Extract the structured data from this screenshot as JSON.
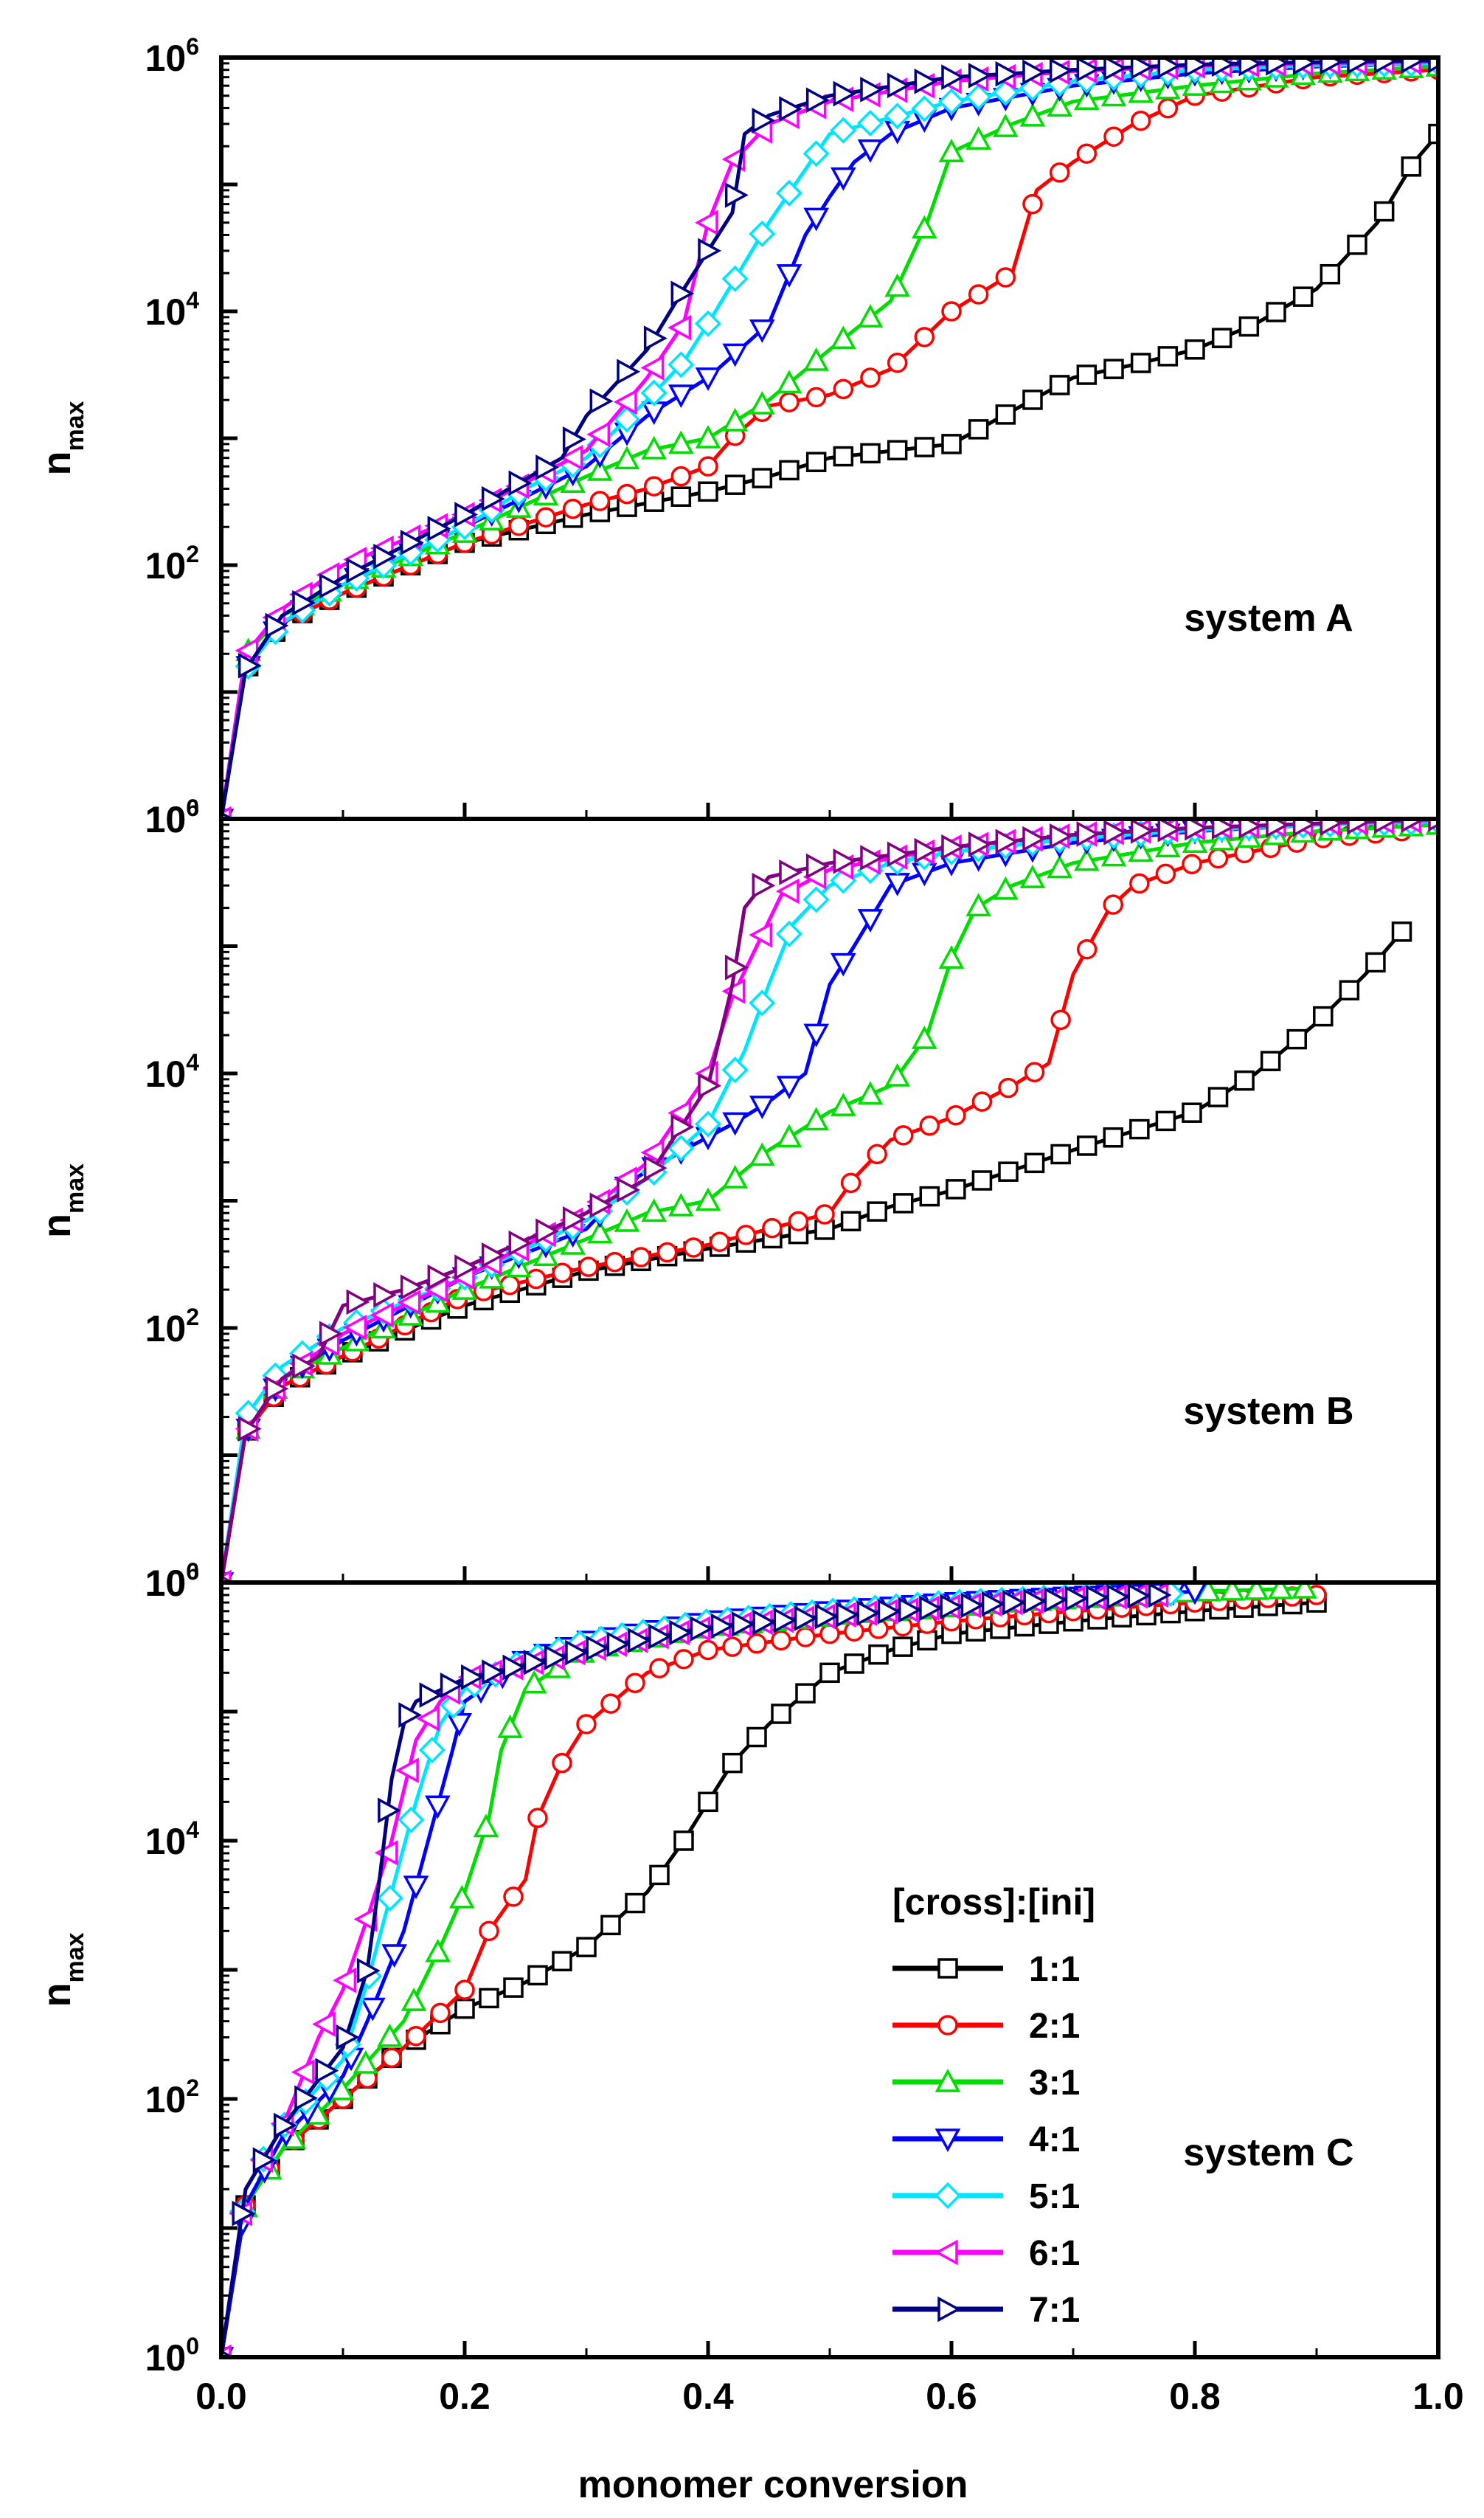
{
  "figure": {
    "xlabel": "monomer conversion",
    "x_ticks": [
      "0.0",
      "0.2",
      "0.4",
      "0.6",
      "0.8",
      "1.0"
    ],
    "y_tick_base": "10",
    "y_tick_exps": [
      "0",
      "2",
      "4",
      "6"
    ],
    "ylabel_main": "n",
    "ylabel_sub": "max",
    "legend_title": "[cross]:[ini]",
    "legend_entries": [
      "1:1",
      "2:1",
      "3:1",
      "4:1",
      "5:1",
      "6:1",
      "7:1"
    ],
    "colors": {
      "1:1": "#000000",
      "2:1": "#ff0000",
      "3:1": "#00dd00",
      "4:1": "#0000ff",
      "5:1": "#00e5ff",
      "6:1": "#ff00ff",
      "7:1": "#000080",
      "B-7:1": "#800080"
    },
    "markers": {
      "1:1": "square",
      "2:1": "circle",
      "3:1": "triangle-up",
      "4:1": "triangle-down",
      "5:1": "diamond",
      "6:1": "triangle-left",
      "7:1": "triangle-right"
    }
  },
  "chart_data": [
    {
      "type": "line",
      "title": "system A",
      "xlabel": "monomer conversion",
      "ylabel": "n_max",
      "xlim": [
        0,
        1.0
      ],
      "ylim": [
        1,
        1000000
      ],
      "yscale": "log",
      "series": [
        {
          "name": "1:1",
          "x": [
            0,
            0.02,
            0.05,
            0.1,
            0.2,
            0.3,
            0.4,
            0.45,
            0.5,
            0.6,
            0.7,
            0.75,
            0.8,
            0.85,
            0.9,
            0.95,
            0.98,
            1.0
          ],
          "y": [
            1,
            15,
            35,
            60,
            150,
            250,
            380,
            500,
            700,
            900,
            3000,
            3800,
            5000,
            8000,
            15000,
            50000,
            150000,
            250000
          ]
        },
        {
          "name": "2:1",
          "x": [
            0,
            0.02,
            0.05,
            0.1,
            0.2,
            0.3,
            0.35,
            0.4,
            0.42,
            0.45,
            0.5,
            0.55,
            0.6,
            0.65,
            0.67,
            0.7,
            0.75,
            0.8,
            0.9,
            1.0
          ],
          "y": [
            1,
            15,
            35,
            60,
            150,
            300,
            400,
            600,
            1000,
            1800,
            2200,
            3500,
            10000,
            20000,
            90000,
            150000,
            300000,
            500000,
            700000,
            800000
          ]
        },
        {
          "name": "3:1",
          "x": [
            0,
            0.02,
            0.05,
            0.1,
            0.2,
            0.3,
            0.35,
            0.4,
            0.45,
            0.5,
            0.55,
            0.58,
            0.6,
            0.65,
            0.7,
            0.8,
            0.9,
            1.0
          ],
          "y": [
            1,
            20,
            40,
            70,
            180,
            500,
            800,
            1000,
            2000,
            5000,
            12000,
            50000,
            180000,
            300000,
            450000,
            600000,
            750000,
            850000
          ]
        },
        {
          "name": "4:1",
          "x": [
            0,
            0.02,
            0.05,
            0.1,
            0.2,
            0.3,
            0.35,
            0.4,
            0.45,
            0.48,
            0.5,
            0.52,
            0.55,
            0.6,
            0.7,
            0.8,
            0.9,
            1.0
          ],
          "y": [
            1,
            15,
            35,
            70,
            200,
            600,
            1500,
            3000,
            8000,
            40000,
            80000,
            150000,
            250000,
            400000,
            600000,
            750000,
            850000,
            900000
          ]
        },
        {
          "name": "5:1",
          "x": [
            0,
            0.02,
            0.05,
            0.1,
            0.2,
            0.25,
            0.3,
            0.35,
            0.38,
            0.4,
            0.45,
            0.5,
            0.6,
            0.7,
            0.8,
            0.9,
            1.0
          ],
          "y": [
            1,
            15,
            35,
            70,
            200,
            400,
            700,
            2000,
            4000,
            8000,
            50000,
            250000,
            450000,
            650000,
            800000,
            870000,
            900000
          ]
        },
        {
          "name": "6:1",
          "x": [
            0,
            0.02,
            0.05,
            0.1,
            0.2,
            0.3,
            0.35,
            0.38,
            0.4,
            0.42,
            0.45,
            0.5,
            0.6,
            0.7,
            0.8,
            0.9,
            1.0
          ],
          "y": [
            1,
            20,
            45,
            100,
            250,
            800,
            3000,
            8000,
            50000,
            150000,
            300000,
            450000,
            650000,
            780000,
            860000,
            900000,
            930000
          ]
        },
        {
          "name": "7:1",
          "x": [
            0,
            0.02,
            0.05,
            0.1,
            0.2,
            0.28,
            0.3,
            0.35,
            0.38,
            0.42,
            0.43,
            0.45,
            0.5,
            0.6,
            0.7,
            0.8,
            0.9,
            1.0
          ],
          "y": [
            1,
            15,
            40,
            80,
            250,
            700,
            1500,
            5000,
            15000,
            60000,
            250000,
            350000,
            500000,
            700000,
            800000,
            880000,
            920000,
            950000
          ]
        }
      ]
    },
    {
      "type": "line",
      "title": "system B",
      "xlabel": "monomer conversion",
      "ylabel": "n_max",
      "xlim": [
        0,
        1.0
      ],
      "ylim": [
        1,
        1000000
      ],
      "yscale": "log",
      "series": [
        {
          "name": "1:1",
          "x": [
            0,
            0.02,
            0.05,
            0.1,
            0.2,
            0.3,
            0.4,
            0.5,
            0.55,
            0.6,
            0.7,
            0.8,
            0.85,
            0.9,
            0.94,
            0.97
          ],
          "y": [
            1,
            15,
            35,
            60,
            150,
            280,
            420,
            600,
            900,
            1200,
            2500,
            5000,
            10000,
            25000,
            60000,
            130000
          ]
        },
        {
          "name": "2:1",
          "x": [
            0,
            0.02,
            0.05,
            0.1,
            0.2,
            0.3,
            0.4,
            0.45,
            0.5,
            0.52,
            0.55,
            0.6,
            0.65,
            0.68,
            0.7,
            0.73,
            0.75,
            0.8,
            0.9,
            0.97
          ],
          "y": [
            1,
            15,
            35,
            60,
            180,
            300,
            450,
            600,
            800,
            1500,
            3000,
            4500,
            8000,
            12000,
            60000,
            200000,
            300000,
            450000,
            700000,
            800000
          ]
        },
        {
          "name": "3:1",
          "x": [
            0,
            0.02,
            0.05,
            0.1,
            0.2,
            0.3,
            0.35,
            0.4,
            0.45,
            0.5,
            0.55,
            0.58,
            0.6,
            0.62,
            0.65,
            0.7,
            0.8,
            0.9,
            1.0
          ],
          "y": [
            1,
            15,
            40,
            70,
            200,
            500,
            800,
            1000,
            2500,
            5000,
            8000,
            20000,
            80000,
            200000,
            300000,
            450000,
            650000,
            800000,
            900000
          ]
        },
        {
          "name": "4:1",
          "x": [
            0,
            0.02,
            0.05,
            0.1,
            0.2,
            0.3,
            0.34,
            0.38,
            0.42,
            0.45,
            0.48,
            0.5,
            0.52,
            0.55,
            0.6,
            0.7,
            0.8,
            0.9,
            1.0
          ],
          "y": [
            1,
            15,
            40,
            80,
            250,
            600,
            1500,
            2500,
            4000,
            6000,
            10000,
            50000,
            100000,
            300000,
            450000,
            650000,
            800000,
            900000,
            950000
          ]
        },
        {
          "name": "5:1",
          "x": [
            0,
            0.02,
            0.05,
            0.1,
            0.2,
            0.3,
            0.35,
            0.4,
            0.43,
            0.45,
            0.47,
            0.5,
            0.55,
            0.6,
            0.7,
            0.8,
            0.9,
            1.0
          ],
          "y": [
            1,
            20,
            50,
            100,
            250,
            700,
            1500,
            4000,
            15000,
            50000,
            150000,
            300000,
            450000,
            550000,
            700000,
            820000,
            900000,
            950000
          ]
        },
        {
          "name": "6:1",
          "x": [
            0,
            0.02,
            0.05,
            0.1,
            0.2,
            0.3,
            0.35,
            0.4,
            0.42,
            0.44,
            0.46,
            0.5,
            0.6,
            0.7,
            0.8,
            0.9,
            1.0
          ],
          "y": [
            1,
            15,
            40,
            90,
            250,
            800,
            2000,
            10000,
            40000,
            100000,
            250000,
            400000,
            600000,
            750000,
            850000,
            920000,
            980000
          ]
        },
        {
          "name": "7:1",
          "x": [
            0,
            0.02,
            0.05,
            0.08,
            0.1,
            0.15,
            0.2,
            0.3,
            0.35,
            0.4,
            0.42,
            0.43,
            0.45,
            0.5,
            0.6,
            0.7,
            0.8,
            0.9,
            1.0
          ],
          "y": [
            1,
            15,
            40,
            60,
            150,
            200,
            300,
            800,
            1500,
            8000,
            50000,
            200000,
            350000,
            450000,
            600000,
            750000,
            850000,
            920000,
            1000000
          ]
        }
      ]
    },
    {
      "type": "line",
      "title": "system C",
      "xlabel": "monomer conversion",
      "ylabel": "n_max",
      "xlim": [
        0,
        1.0
      ],
      "ylim": [
        1,
        1000000
      ],
      "yscale": "log",
      "series": [
        {
          "name": "1:1",
          "x": [
            0,
            0.02,
            0.05,
            0.1,
            0.15,
            0.2,
            0.25,
            0.3,
            0.35,
            0.38,
            0.4,
            0.42,
            0.45,
            0.5,
            0.55,
            0.6,
            0.7,
            0.8,
            0.9
          ],
          "y": [
            1,
            15,
            40,
            100,
            250,
            500,
            800,
            1500,
            4000,
            10000,
            20000,
            40000,
            80000,
            200000,
            300000,
            400000,
            500000,
            600000,
            700000
          ]
        },
        {
          "name": "2:1",
          "x": [
            0,
            0.02,
            0.05,
            0.1,
            0.15,
            0.2,
            0.22,
            0.25,
            0.26,
            0.28,
            0.3,
            0.35,
            0.4,
            0.5,
            0.6,
            0.7,
            0.8,
            0.9
          ],
          "y": [
            1,
            15,
            40,
            100,
            250,
            700,
            2000,
            5000,
            15000,
            40000,
            80000,
            200000,
            300000,
            400000,
            500000,
            600000,
            700000,
            800000
          ]
        },
        {
          "name": "3:1",
          "x": [
            0,
            0.02,
            0.05,
            0.1,
            0.15,
            0.18,
            0.2,
            0.22,
            0.23,
            0.25,
            0.3,
            0.4,
            0.5,
            0.6,
            0.7,
            0.8,
            0.89
          ],
          "y": [
            1,
            15,
            40,
            120,
            400,
            1500,
            4000,
            15000,
            50000,
            150000,
            300000,
            450000,
            550000,
            650000,
            750000,
            850000,
            900000
          ]
        },
        {
          "name": "4:1",
          "x": [
            0,
            0.02,
            0.05,
            0.1,
            0.12,
            0.15,
            0.17,
            0.19,
            0.2,
            0.25,
            0.3,
            0.4,
            0.5,
            0.6,
            0.7,
            0.8
          ],
          "y": [
            1,
            15,
            50,
            150,
            400,
            2000,
            10000,
            50000,
            120000,
            250000,
            350000,
            500000,
            600000,
            700000,
            780000,
            850000
          ]
        },
        {
          "name": "5:1",
          "x": [
            0,
            0.02,
            0.05,
            0.1,
            0.12,
            0.14,
            0.16,
            0.18,
            0.2,
            0.25,
            0.3,
            0.4,
            0.5,
            0.6,
            0.7,
            0.78
          ],
          "y": [
            1,
            20,
            60,
            200,
            800,
            4000,
            20000,
            80000,
            150000,
            250000,
            350000,
            500000,
            600000,
            700000,
            780000,
            820000
          ]
        },
        {
          "name": "6:1",
          "x": [
            0,
            0.02,
            0.05,
            0.08,
            0.1,
            0.12,
            0.14,
            0.16,
            0.18,
            0.2,
            0.3,
            0.4,
            0.5,
            0.6,
            0.7,
            0.77
          ],
          "y": [
            1,
            20,
            60,
            300,
            700,
            2500,
            10000,
            60000,
            120000,
            180000,
            300000,
            450000,
            550000,
            650000,
            750000,
            800000
          ]
        },
        {
          "name": "7:1",
          "x": [
            0,
            0.02,
            0.05,
            0.1,
            0.12,
            0.13,
            0.14,
            0.15,
            0.16,
            0.2,
            0.3,
            0.4,
            0.5,
            0.6,
            0.7,
            0.77
          ],
          "y": [
            1,
            20,
            60,
            250,
            1000,
            5000,
            30000,
            80000,
            120000,
            180000,
            300000,
            450000,
            550000,
            650000,
            750000,
            800000
          ]
        }
      ]
    }
  ]
}
